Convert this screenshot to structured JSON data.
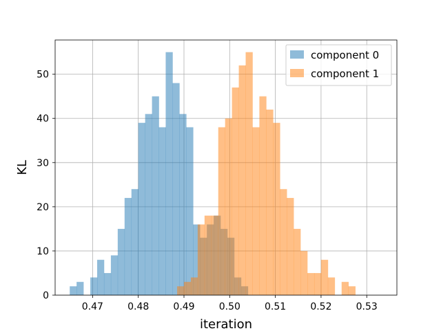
{
  "chart_data": {
    "type": "bar",
    "title": "",
    "xlabel": "iteration",
    "ylabel": "KL",
    "xlim": [
      0.4618,
      0.5366
    ],
    "ylim": [
      0,
      57.75
    ],
    "bin_width": 0.0015,
    "grid": true,
    "legend_position": "top-right",
    "x_ticks": [
      {
        "value": 0.47,
        "label": "0.47"
      },
      {
        "value": 0.48,
        "label": "0.48"
      },
      {
        "value": 0.49,
        "label": "0.49"
      },
      {
        "value": 0.5,
        "label": "0.50"
      },
      {
        "value": 0.51,
        "label": "0.51"
      },
      {
        "value": 0.52,
        "label": "0.52"
      },
      {
        "value": 0.53,
        "label": "0.53"
      }
    ],
    "y_ticks": [
      {
        "value": 0,
        "label": "0"
      },
      {
        "value": 10,
        "label": "10"
      },
      {
        "value": 20,
        "label": "20"
      },
      {
        "value": 30,
        "label": "30"
      },
      {
        "value": 40,
        "label": "40"
      },
      {
        "value": 50,
        "label": "50"
      }
    ],
    "series": [
      {
        "name": "component 0",
        "color": "#1f77b4",
        "opacity": 0.5,
        "bins": [
          {
            "x": 0.465,
            "y": 2
          },
          {
            "x": 0.4665,
            "y": 3
          },
          {
            "x": 0.4695,
            "y": 4
          },
          {
            "x": 0.471,
            "y": 8
          },
          {
            "x": 0.4725,
            "y": 5
          },
          {
            "x": 0.474,
            "y": 9
          },
          {
            "x": 0.4755,
            "y": 15
          },
          {
            "x": 0.477,
            "y": 22
          },
          {
            "x": 0.4785,
            "y": 24
          },
          {
            "x": 0.48,
            "y": 39
          },
          {
            "x": 0.4815,
            "y": 41
          },
          {
            "x": 0.483,
            "y": 45
          },
          {
            "x": 0.4845,
            "y": 38
          },
          {
            "x": 0.486,
            "y": 55
          },
          {
            "x": 0.4875,
            "y": 48
          },
          {
            "x": 0.489,
            "y": 41
          },
          {
            "x": 0.4905,
            "y": 38
          },
          {
            "x": 0.492,
            "y": 16
          },
          {
            "x": 0.4935,
            "y": 13
          },
          {
            "x": 0.495,
            "y": 16
          },
          {
            "x": 0.4965,
            "y": 18
          },
          {
            "x": 0.498,
            "y": 15
          },
          {
            "x": 0.4995,
            "y": 13
          },
          {
            "x": 0.501,
            "y": 4
          },
          {
            "x": 0.5025,
            "y": 2
          }
        ]
      },
      {
        "name": "component 1",
        "color": "#ff7f0e",
        "opacity": 0.5,
        "bins": [
          {
            "x": 0.4885,
            "y": 2
          },
          {
            "x": 0.49,
            "y": 3
          },
          {
            "x": 0.4915,
            "y": 4
          },
          {
            "x": 0.493,
            "y": 16
          },
          {
            "x": 0.4945,
            "y": 18
          },
          {
            "x": 0.496,
            "y": 18
          },
          {
            "x": 0.4975,
            "y": 38
          },
          {
            "x": 0.499,
            "y": 40
          },
          {
            "x": 0.5005,
            "y": 47
          },
          {
            "x": 0.502,
            "y": 52
          },
          {
            "x": 0.5035,
            "y": 55
          },
          {
            "x": 0.505,
            "y": 38
          },
          {
            "x": 0.5065,
            "y": 45
          },
          {
            "x": 0.508,
            "y": 42
          },
          {
            "x": 0.5095,
            "y": 39
          },
          {
            "x": 0.511,
            "y": 24
          },
          {
            "x": 0.5125,
            "y": 22
          },
          {
            "x": 0.514,
            "y": 15
          },
          {
            "x": 0.5155,
            "y": 10
          },
          {
            "x": 0.517,
            "y": 5
          },
          {
            "x": 0.5185,
            "y": 5
          },
          {
            "x": 0.52,
            "y": 8
          },
          {
            "x": 0.5215,
            "y": 4
          },
          {
            "x": 0.5245,
            "y": 3
          },
          {
            "x": 0.526,
            "y": 2
          }
        ]
      }
    ]
  }
}
